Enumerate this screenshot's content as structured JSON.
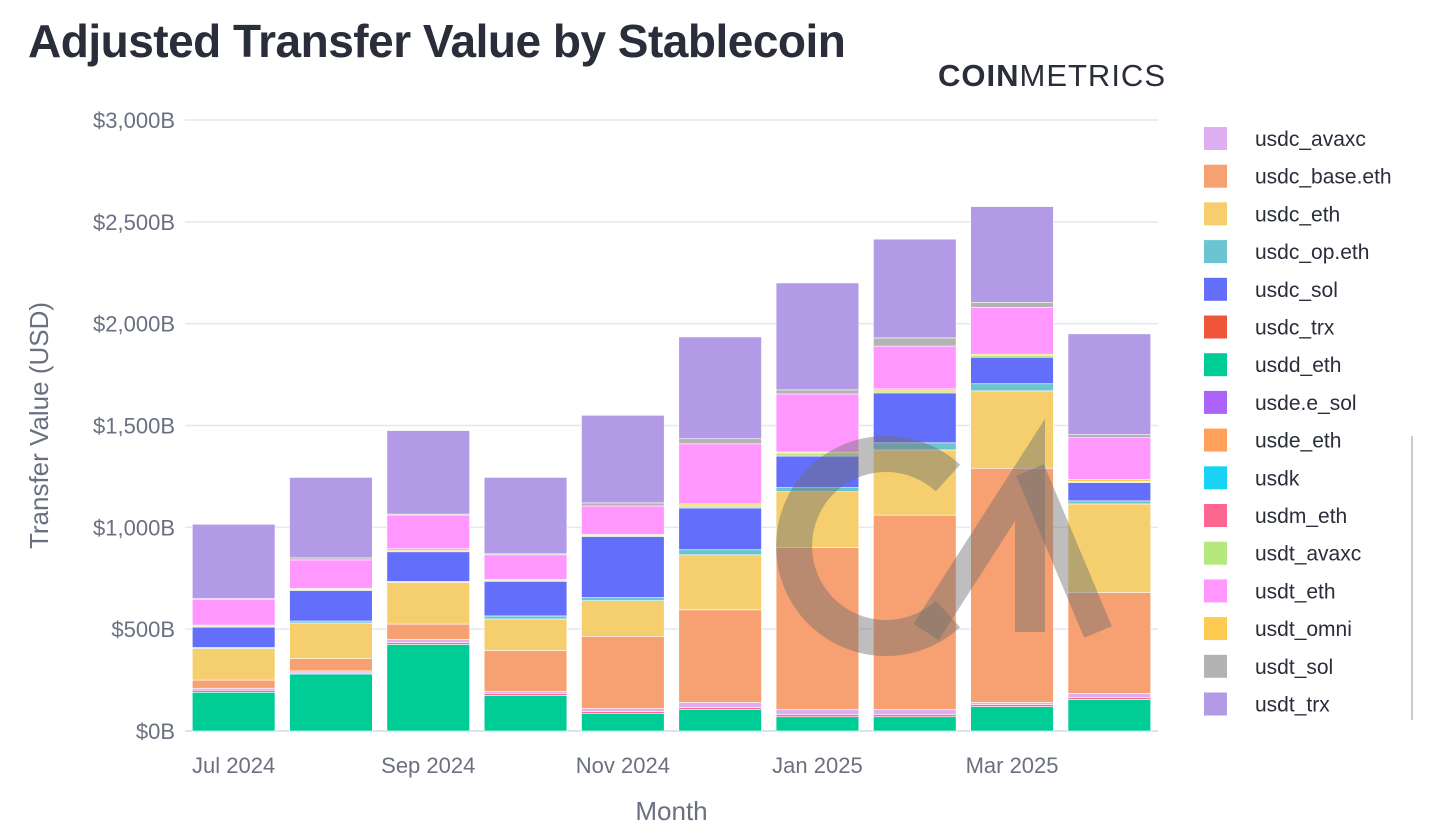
{
  "title": "Adjusted Transfer Value by Stablecoin",
  "brand": {
    "part1": "COIN",
    "part2": "METRICS"
  },
  "watermark": "CM",
  "chart_data": {
    "type": "bar",
    "stacked": true,
    "title": "Adjusted Transfer Value by Stablecoin",
    "xlabel": "Month",
    "ylabel": "Transfer Value (USD)",
    "ylim": [
      0,
      3000
    ],
    "y_unit": "B USD",
    "y_ticks": [
      0,
      500,
      1000,
      1500,
      2000,
      2500,
      3000
    ],
    "y_tick_labels": [
      "$0B",
      "$500B",
      "$1,000B",
      "$1,500B",
      "$2,000B",
      "$2,500B",
      "$3,000B"
    ],
    "categories": [
      "Jul 2024",
      "Aug 2024",
      "Sep 2024",
      "Oct 2024",
      "Nov 2024",
      "Dec 2024",
      "Jan 2025",
      "Feb 2025",
      "Mar 2025",
      "Apr 2025"
    ],
    "x_tick_labels": [
      "Jul 2024",
      "Sep 2024",
      "Nov 2024",
      "Jan 2025",
      "Mar 2025"
    ],
    "grid": true,
    "legend_position": "right",
    "series": [
      {
        "name": "usdd_eth",
        "color": "#00cc96",
        "values": [
          190,
          280,
          425,
          175,
          85,
          105,
          70,
          70,
          120,
          155
        ]
      },
      {
        "name": "usdm_eth",
        "color": "#ff6692",
        "values": [
          10,
          5,
          10,
          10,
          10,
          10,
          10,
          10,
          10,
          10
        ]
      },
      {
        "name": "usdc_avaxc",
        "color": "#deaff0",
        "values": [
          10,
          10,
          15,
          10,
          15,
          25,
          25,
          25,
          10,
          20
        ]
      },
      {
        "name": "usdc_base.eth",
        "color": "#f7a072",
        "values": [
          40,
          60,
          75,
          200,
          355,
          455,
          795,
          955,
          1150,
          495
        ]
      },
      {
        "name": "usdc_eth",
        "color": "#f5cf6e",
        "values": [
          155,
          175,
          205,
          155,
          175,
          270,
          275,
          320,
          380,
          435
        ]
      },
      {
        "name": "usdc_op.eth",
        "color": "#6bc4cf",
        "values": [
          5,
          10,
          5,
          15,
          15,
          25,
          20,
          35,
          35,
          15
        ]
      },
      {
        "name": "usdc_sol",
        "color": "#636efa",
        "values": [
          100,
          150,
          145,
          170,
          300,
          205,
          155,
          245,
          130,
          90
        ]
      },
      {
        "name": "usdt_avaxc",
        "color": "#b6e880",
        "values": [
          5,
          5,
          5,
          5,
          5,
          10,
          15,
          10,
          10,
          5
        ]
      },
      {
        "name": "usdt_omni",
        "color": "#fecb52",
        "values": [
          5,
          5,
          10,
          5,
          5,
          10,
          5,
          10,
          5,
          10
        ]
      },
      {
        "name": "usdt_eth",
        "color": "#ff97ff",
        "values": [
          125,
          140,
          165,
          120,
          140,
          295,
          285,
          210,
          230,
          205
        ]
      },
      {
        "name": "usdt_sol",
        "color": "#b3b3b3",
        "values": [
          5,
          10,
          5,
          5,
          15,
          25,
          20,
          40,
          25,
          15
        ]
      },
      {
        "name": "usdt_trx",
        "color": "#b39ae6",
        "values": [
          365,
          395,
          410,
          375,
          430,
          500,
          525,
          485,
          470,
          495
        ]
      }
    ],
    "legend": [
      {
        "name": "usdc_avaxc",
        "color": "#deaff0"
      },
      {
        "name": "usdc_base.eth",
        "color": "#f7a072"
      },
      {
        "name": "usdc_eth",
        "color": "#f5cf6e"
      },
      {
        "name": "usdc_op.eth",
        "color": "#6bc4cf"
      },
      {
        "name": "usdc_sol",
        "color": "#636efa"
      },
      {
        "name": "usdc_trx",
        "color": "#ef553b"
      },
      {
        "name": "usdd_eth",
        "color": "#00cc96"
      },
      {
        "name": "usde.e_sol",
        "color": "#ab63fa"
      },
      {
        "name": "usde_eth",
        "color": "#ffa15a"
      },
      {
        "name": "usdk",
        "color": "#19d3f3"
      },
      {
        "name": "usdm_eth",
        "color": "#ff6692"
      },
      {
        "name": "usdt_avaxc",
        "color": "#b6e880"
      },
      {
        "name": "usdt_eth",
        "color": "#ff97ff"
      },
      {
        "name": "usdt_omni",
        "color": "#fecb52"
      },
      {
        "name": "usdt_sol",
        "color": "#b3b3b3"
      },
      {
        "name": "usdt_trx",
        "color": "#b39ae6"
      }
    ]
  }
}
